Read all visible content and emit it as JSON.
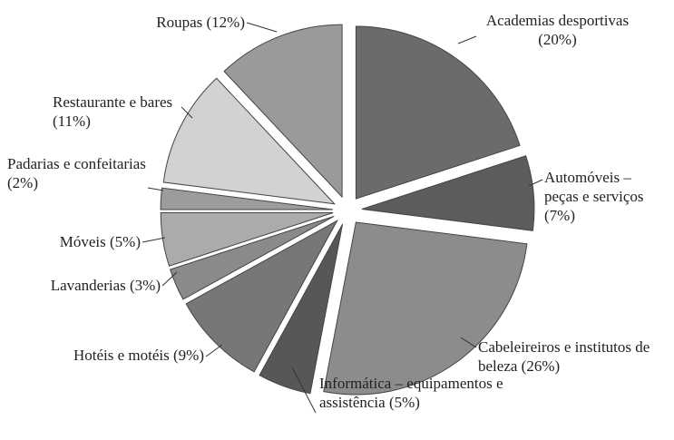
{
  "chart_data": {
    "type": "pie",
    "categories": [
      "Academias desportivas",
      "Automóveis – peças e serviços",
      "Cabeleireiros e institutos de beleza",
      "Informática – equipamentos e assistência",
      "Hotéis e motéis",
      "Lavanderias",
      "Móveis",
      "Padarias e confeitarias",
      "Restaurante e bares",
      "Roupas"
    ],
    "values": [
      20,
      7,
      26,
      5,
      9,
      3,
      5,
      2,
      11,
      12
    ],
    "value_labels": [
      "(20%)",
      "(7%)",
      "(26%)",
      "(5%)",
      "(9%)",
      "(3%)",
      "(5%)",
      "(2%)",
      "(11%)",
      "(12%)"
    ],
    "colors": [
      "#6b6b6b",
      "#5c5c5c",
      "#8c8c8c",
      "#575757",
      "#777777",
      "#8a8a8a",
      "#ababab",
      "#9c9c9c",
      "#d2d2d2",
      "#9a9a9a"
    ]
  }
}
